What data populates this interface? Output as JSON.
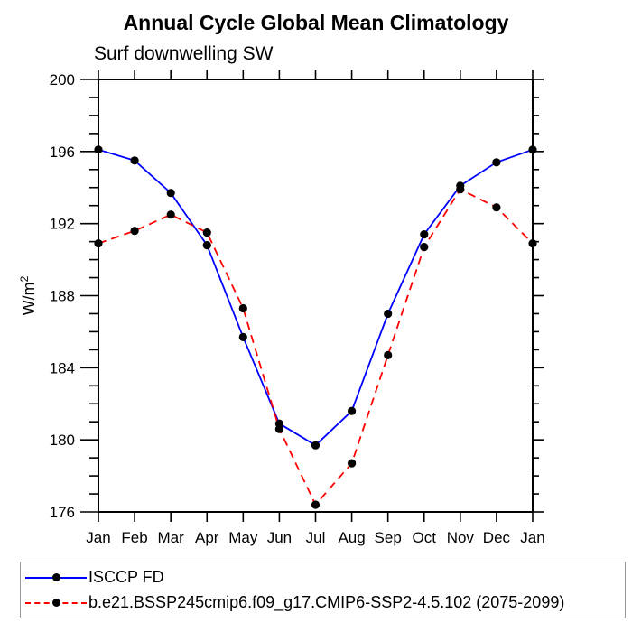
{
  "page": {
    "title": "Annual Cycle Global Mean Climatology",
    "subtitle": "Surf downwelling SW"
  },
  "chart_data": {
    "type": "line",
    "title": "Annual Cycle Global Mean Climatology",
    "subtitle": "Surf downwelling SW",
    "ylabel": "W/m",
    "ylabel_superscript": "2",
    "x_categories": [
      "Jan",
      "Feb",
      "Mar",
      "Apr",
      "May",
      "Jun",
      "Jul",
      "Aug",
      "Sep",
      "Oct",
      "Nov",
      "Dec",
      "Jan"
    ],
    "ylim": [
      176,
      200
    ],
    "y_major_step": 4,
    "y_minor_step": 1,
    "y_major_tick_labels": [
      "176",
      "180",
      "184",
      "188",
      "192",
      "196",
      "200"
    ],
    "grid": false,
    "legend_position": "bottom-left-box",
    "axis_color": "#000000",
    "marker_color": "#000000",
    "series": [
      {
        "name": "ISCCP FD",
        "color": "#0000ff",
        "line_style": "solid",
        "marker": "filled-circle",
        "values": [
          196.1,
          195.5,
          193.7,
          190.8,
          185.7,
          180.9,
          179.7,
          181.6,
          187.0,
          191.4,
          194.1,
          195.4,
          196.1
        ]
      },
      {
        "name": "b.e21.BSSP245cmip6.f09_g17.CMIP6-SSP2-4.5.102 (2075-2099)",
        "color": "#ff0000",
        "line_style": "dashed",
        "marker": "filled-circle",
        "values": [
          190.9,
          191.6,
          192.5,
          191.5,
          187.3,
          180.6,
          176.4,
          178.7,
          184.7,
          190.7,
          193.9,
          192.9,
          190.9
        ]
      }
    ]
  }
}
